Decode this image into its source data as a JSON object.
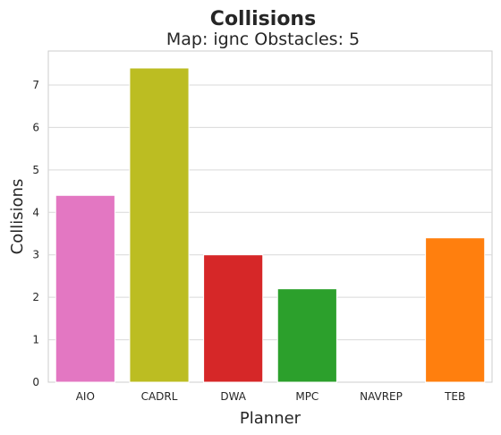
{
  "chart_data": {
    "type": "bar",
    "title": "Collisions",
    "subtitle": "Map: ignc Obstacles: 5",
    "xlabel": "Planner",
    "ylabel": "Collisions",
    "categories": [
      "AIO",
      "CADRL",
      "DWA",
      "MPC",
      "NAVREP",
      "TEB"
    ],
    "values": [
      4.4,
      7.4,
      3.0,
      2.2,
      0,
      3.4
    ],
    "colors": [
      "#e377c2",
      "#bcbd22",
      "#d62728",
      "#2ca02c",
      "#9467bd",
      "#ff7f0e"
    ],
    "ylim": [
      0,
      7.8
    ],
    "yticks": [
      0,
      1,
      2,
      3,
      4,
      5,
      6,
      7
    ],
    "grid": "horizontal"
  }
}
